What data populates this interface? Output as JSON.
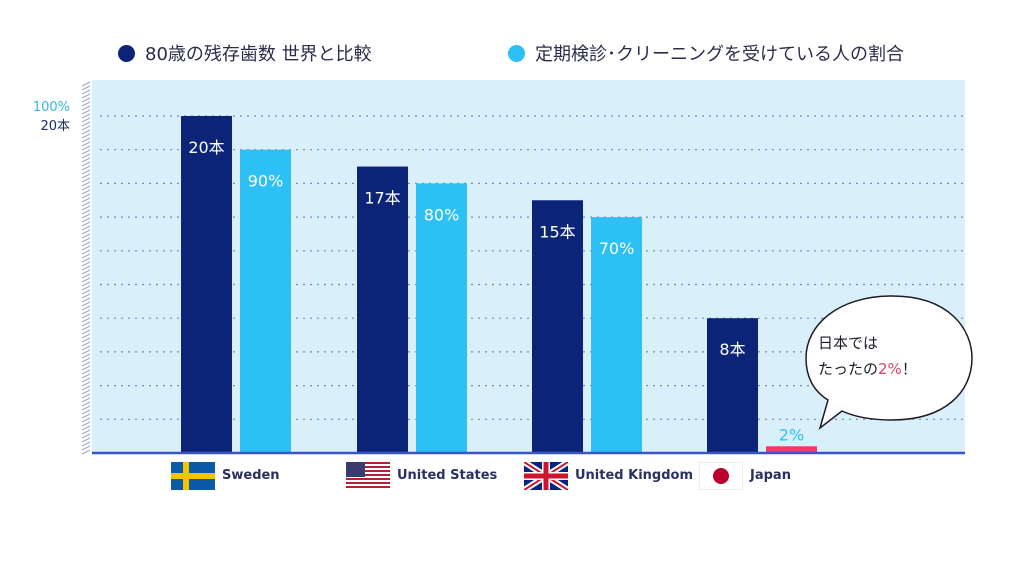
{
  "legend": {
    "teeth_label": "80歳の残存歯数 世界と比較",
    "checkup_label": "定期検診･クリーニングを受けている人の割合"
  },
  "axis": {
    "top_percent_label": "100%",
    "top_teeth_label": "20本"
  },
  "callout": {
    "line1": "日本では",
    "line2_prefix": "たったの",
    "line2_highlight": "2%",
    "line2_suffix": "！"
  },
  "colors": {
    "teeth": "#0c2478",
    "checkup": "#2cc0f4",
    "japan_highlight": "#ec3b6e",
    "plot_background": "#d9f0fb",
    "axis_line": "#3b55c4",
    "grid": "#5a6fa4",
    "tick_percent": "#38b6ea",
    "tick_teeth": "#1a2a6b"
  },
  "chart_data": {
    "type": "bar",
    "categories": [
      "Sweden",
      "United States",
      "United Kingdom",
      "Japan"
    ],
    "category_flags": [
      "sweden-flag-icon",
      "us-flag-icon",
      "uk-flag-icon",
      "japan-flag-icon"
    ],
    "series": [
      {
        "name": "80歳の残存歯数 世界と比較",
        "values": [
          20,
          17,
          15,
          8
        ],
        "labels": [
          "20本",
          "17本",
          "15本",
          "8本"
        ],
        "axis_max": 20
      },
      {
        "name": "定期検診･クリーニングを受けている人の割合",
        "values": [
          90,
          80,
          70,
          2
        ],
        "labels": [
          "90%",
          "80%",
          "70%",
          "2%"
        ],
        "axis_max": 100
      }
    ],
    "ylim": [
      0,
      100
    ],
    "grid": true,
    "legend_position": "top"
  }
}
